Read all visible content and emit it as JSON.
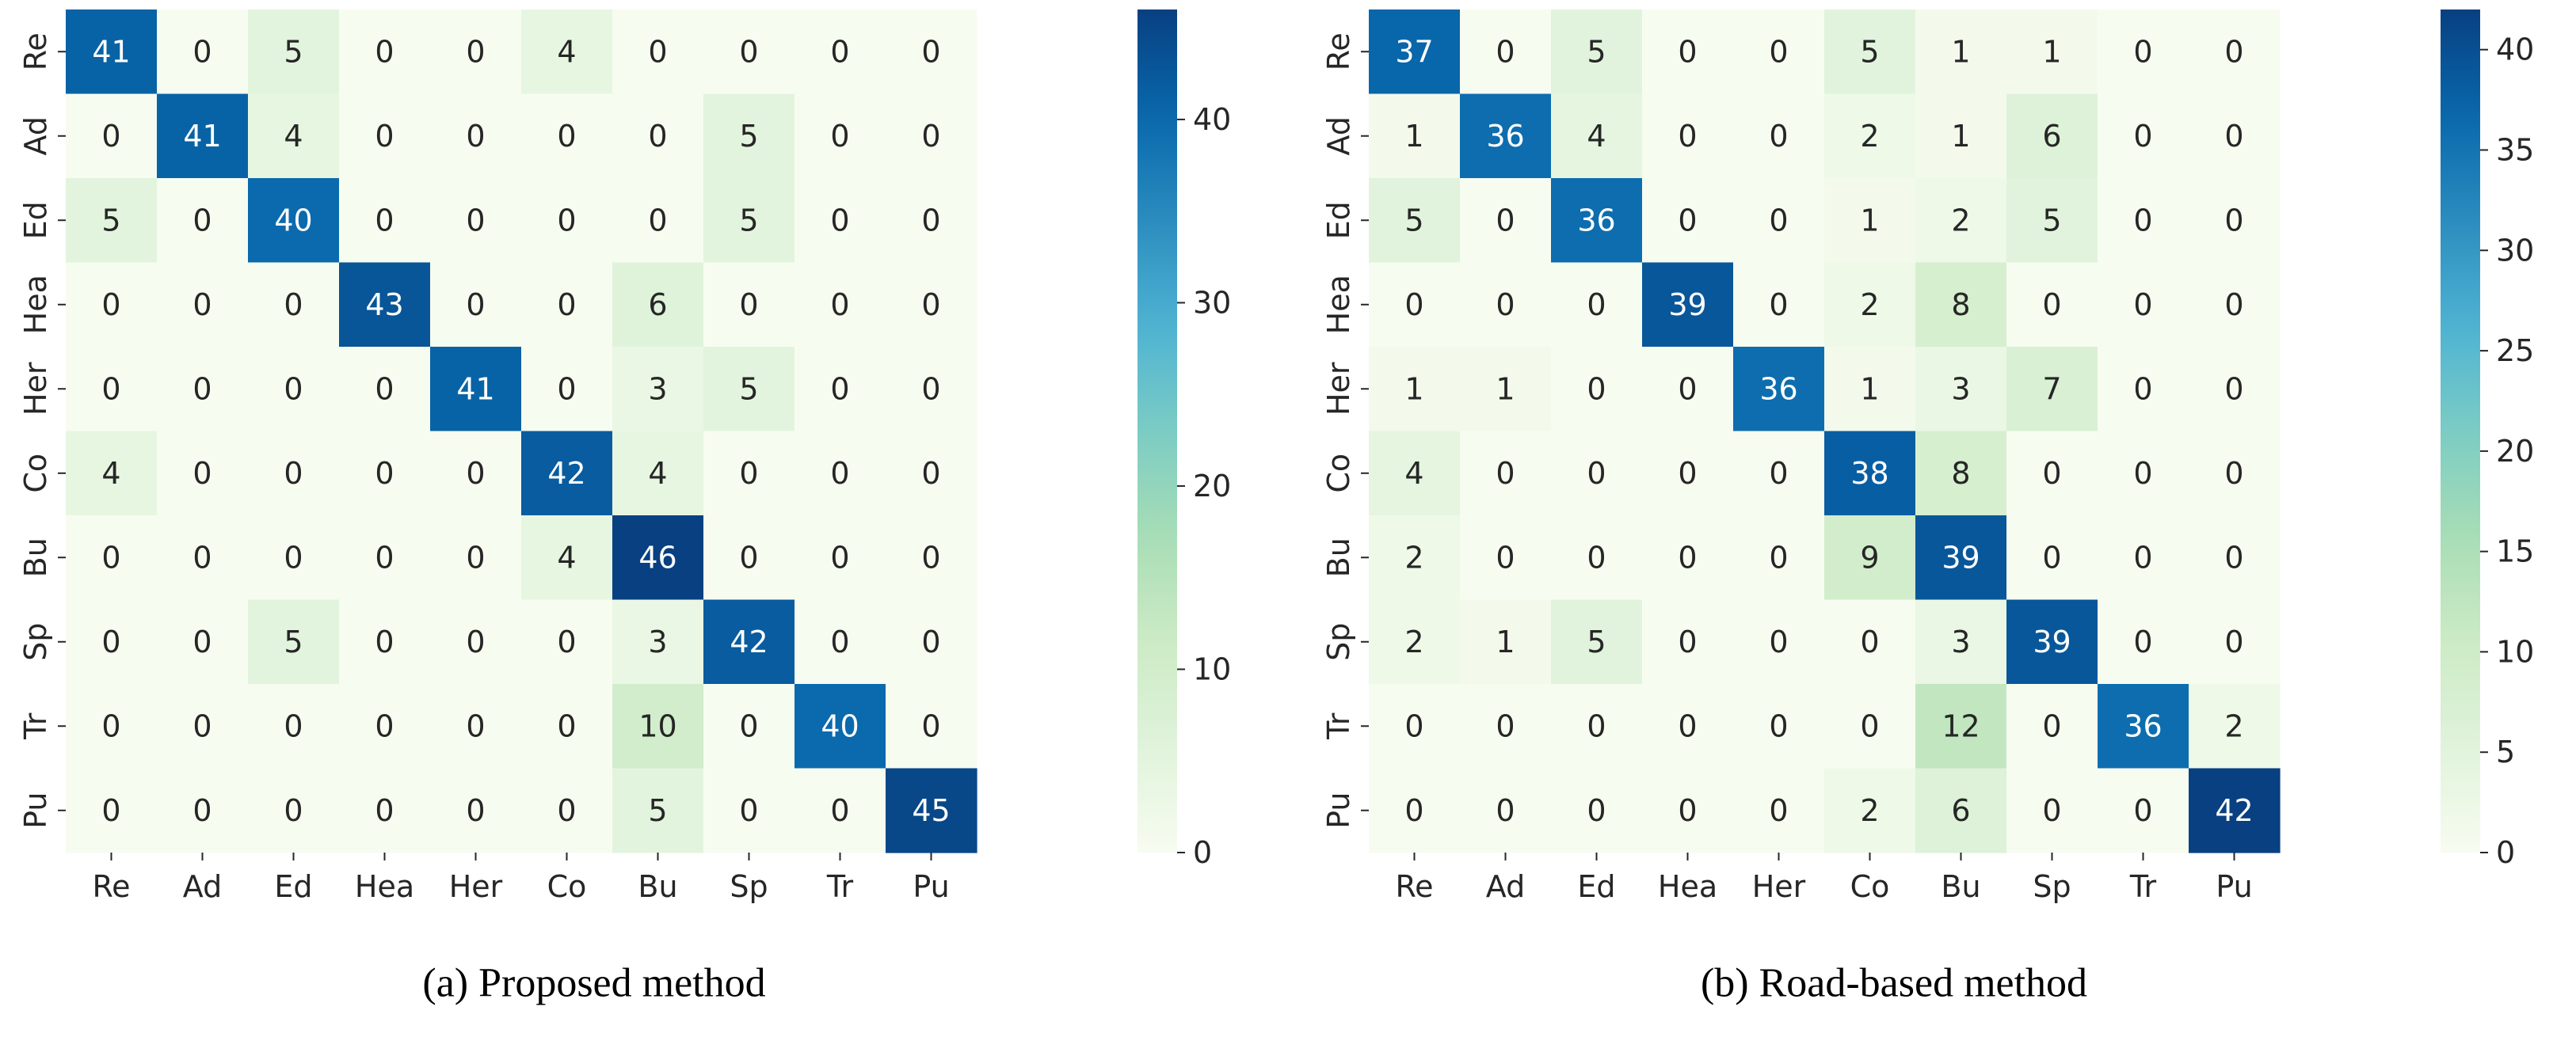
{
  "chart_data": [
    {
      "type": "heatmap",
      "title": "(a) Proposed method",
      "xlabel": "",
      "ylabel": "",
      "x_categories": [
        "Re",
        "Ad",
        "Ed",
        "Hea",
        "Her",
        "Co",
        "Bu",
        "Sp",
        "Tr",
        "Pu"
      ],
      "y_categories": [
        "Re",
        "Ad",
        "Ed",
        "Hea",
        "Her",
        "Co",
        "Bu",
        "Sp",
        "Tr",
        "Pu"
      ],
      "matrix": [
        [
          41,
          0,
          5,
          0,
          0,
          4,
          0,
          0,
          0,
          0
        ],
        [
          0,
          41,
          4,
          0,
          0,
          0,
          0,
          5,
          0,
          0
        ],
        [
          5,
          0,
          40,
          0,
          0,
          0,
          0,
          5,
          0,
          0
        ],
        [
          0,
          0,
          0,
          43,
          0,
          0,
          6,
          0,
          0,
          0
        ],
        [
          0,
          0,
          0,
          0,
          41,
          0,
          3,
          5,
          0,
          0
        ],
        [
          4,
          0,
          0,
          0,
          0,
          42,
          4,
          0,
          0,
          0
        ],
        [
          0,
          0,
          0,
          0,
          0,
          4,
          46,
          0,
          0,
          0
        ],
        [
          0,
          0,
          5,
          0,
          0,
          0,
          3,
          42,
          0,
          0
        ],
        [
          0,
          0,
          0,
          0,
          0,
          0,
          10,
          0,
          40,
          0
        ],
        [
          0,
          0,
          0,
          0,
          0,
          0,
          5,
          0,
          0,
          45
        ]
      ],
      "colormap": "GnBu",
      "colorbar": {
        "range": [
          0,
          46
        ],
        "ticks": [
          0,
          10,
          20,
          30,
          40
        ],
        "labels": [
          "0",
          "10",
          "20",
          "30",
          "40"
        ]
      }
    },
    {
      "type": "heatmap",
      "title": "(b) Road-based method",
      "xlabel": "",
      "ylabel": "",
      "x_categories": [
        "Re",
        "Ad",
        "Ed",
        "Hea",
        "Her",
        "Co",
        "Bu",
        "Sp",
        "Tr",
        "Pu"
      ],
      "y_categories": [
        "Re",
        "Ad",
        "Ed",
        "Hea",
        "Her",
        "Co",
        "Bu",
        "Sp",
        "Tr",
        "Pu"
      ],
      "matrix": [
        [
          37,
          0,
          5,
          0,
          0,
          5,
          1,
          1,
          0,
          0
        ],
        [
          1,
          36,
          4,
          0,
          0,
          2,
          1,
          6,
          0,
          0
        ],
        [
          5,
          0,
          36,
          0,
          0,
          1,
          2,
          5,
          0,
          0
        ],
        [
          0,
          0,
          0,
          39,
          0,
          2,
          8,
          0,
          0,
          0
        ],
        [
          1,
          1,
          0,
          0,
          36,
          1,
          3,
          7,
          0,
          0
        ],
        [
          4,
          0,
          0,
          0,
          0,
          38,
          8,
          0,
          0,
          0
        ],
        [
          2,
          0,
          0,
          0,
          0,
          9,
          39,
          0,
          0,
          0
        ],
        [
          2,
          1,
          5,
          0,
          0,
          0,
          3,
          39,
          0,
          0
        ],
        [
          0,
          0,
          0,
          0,
          0,
          0,
          12,
          0,
          36,
          2
        ],
        [
          0,
          0,
          0,
          0,
          0,
          2,
          6,
          0,
          0,
          42
        ]
      ],
      "colormap": "GnBu",
      "colorbar": {
        "range": [
          0,
          42
        ],
        "ticks": [
          0,
          5,
          10,
          15,
          20,
          25,
          30,
          35,
          40
        ],
        "labels": [
          "0",
          "5",
          "10",
          "15",
          "20",
          "25",
          "30",
          "35",
          "40"
        ]
      }
    }
  ]
}
